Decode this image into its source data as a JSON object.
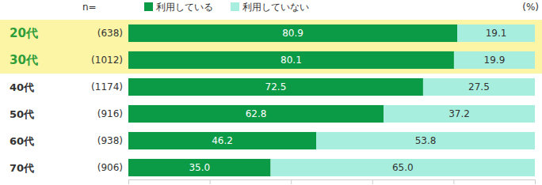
{
  "chart_data": {
    "type": "bar",
    "orientation": "horizontal",
    "stacked": true,
    "data_labels": true,
    "tick_labels": false,
    "grid": false,
    "legend": "top",
    "xlabel": "(%)",
    "categories": [
      "20代",
      "30代",
      "40代",
      "50代",
      "60代",
      "70代"
    ],
    "sample_size_header": "n=",
    "sample_size_labels": [
      "(638)",
      "(1012)",
      "(1174)",
      "(916)",
      "(938)",
      "(906)"
    ],
    "series": [
      {
        "name": "利用している",
        "color": "#0b9a45",
        "values": [
          80.9,
          80.1,
          72.5,
          62.8,
          46.2,
          35.0
        ],
        "value_labels": [
          "80.9",
          "80.1",
          "72.5",
          "62.8",
          "46.2",
          "35.0"
        ]
      },
      {
        "name": "利用していない",
        "color": "#a8eedf",
        "values": [
          19.1,
          19.9,
          27.5,
          37.2,
          53.8,
          65.0
        ],
        "value_labels": [
          "19.1",
          "19.9",
          "27.5",
          "37.2",
          "53.8",
          "65.0"
        ]
      }
    ],
    "xlim": [
      0,
      100
    ],
    "xticks": [
      0,
      20,
      40,
      60,
      80,
      100
    ]
  }
}
